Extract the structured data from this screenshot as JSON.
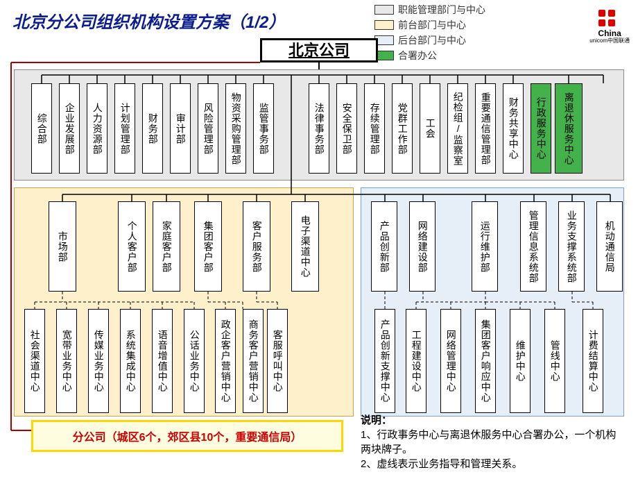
{
  "title": "北京分公司组织机构设置方案（",
  "pageno": "1/2",
  "title_close": "）",
  "legend": {
    "items": [
      {
        "label": "职能管理部门与中心",
        "color": "#e8e8e8"
      },
      {
        "label": "前台部门与中心",
        "color": "#fff0cc"
      },
      {
        "label": "后台部门与中心",
        "color": "#e6eef8"
      },
      {
        "label": "合署办公",
        "color": "#44b24a"
      }
    ]
  },
  "logo": {
    "brand": "China",
    "sub": "unicom中国联通"
  },
  "root": "北京公司",
  "top_depts_a": [
    "综合部",
    "企业发展部",
    "人力资源部",
    "计划管理部",
    "财务部",
    "审计部",
    "风险管理部",
    "物资采购管理部",
    "监管事务部"
  ],
  "top_depts_b": [
    "法律事务部",
    "安全保卫部",
    "存续管理部",
    "党群工作部",
    "工会",
    "纪检组/监察室",
    "重要通信管理部",
    "财务共享中心",
    "行政服务中心",
    "离退休服务中心"
  ],
  "left_depts": [
    "市场部",
    "个人客户部",
    "家庭客户部",
    "集团客户部",
    "客户服务部",
    "电子渠道中心"
  ],
  "left_sub_a": [
    "社会渠道中心",
    "宽带业务中心",
    "传媒业务中心",
    "系统集成中心",
    "语音增值中心",
    "公话业务中心"
  ],
  "left_sub_b": [
    "政企客户营销中心",
    "商务客户营销中心"
  ],
  "left_sub_c": [
    "客服呼叫中心"
  ],
  "right_depts": [
    "产品创新部",
    "网络建设部",
    "运行维护部",
    "管理信息系统部",
    "业务支撑系统部",
    "机动通信局"
  ],
  "right_sub": [
    "产品创新支撑中心",
    "工程建设中心",
    "网络管理中心",
    "集团客户响应中心",
    "维护中心",
    "管线中心",
    "计费结算中心"
  ],
  "branch": "分公司（城区6个，郊区县10个，重要通信局）",
  "notes": {
    "title": "说明：",
    "n1": "1、行政事务中心与离退休服务中心合署办公，一个机构两块牌子。",
    "n2": "2、虚线表示业务指导和管理关系。"
  },
  "colors": {
    "title": "#0c1e8e",
    "top_bg": "#e8e8e8",
    "left_bg": "#fff0cc",
    "right_bg": "#e6eef8",
    "green": "#44b24a",
    "branch_border": "#ffd700",
    "branch_bg": "#fffde0",
    "branch_text": "#c00"
  }
}
